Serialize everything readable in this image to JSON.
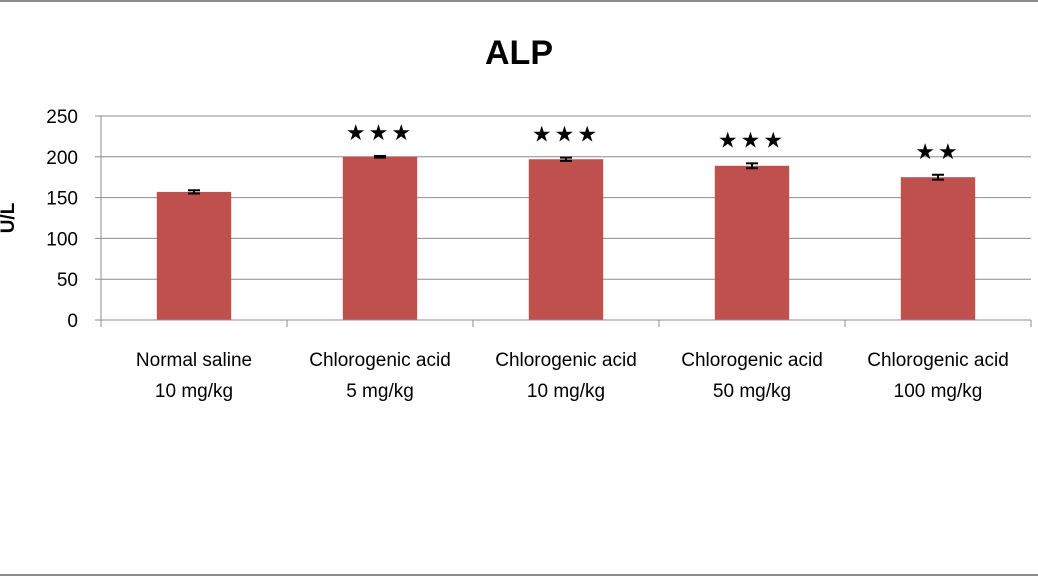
{
  "chart_data": {
    "type": "bar",
    "title": "ALP",
    "ylabel": "U/L",
    "xlabel": "",
    "ylim": [
      0,
      250
    ],
    "yticks": [
      0,
      50,
      100,
      150,
      200,
      250
    ],
    "grid": true,
    "legend": "none",
    "bar_color": "#c0504d",
    "categories": [
      [
        "Normal saline",
        "10 mg/kg"
      ],
      [
        "Chlorogenic acid",
        "5 mg/kg"
      ],
      [
        "Chlorogenic acid",
        "10 mg/kg"
      ],
      [
        "Chlorogenic acid",
        "50 mg/kg"
      ],
      [
        "Chlorogenic acid",
        "100 mg/kg"
      ]
    ],
    "values": [
      157,
      200,
      197,
      189,
      175
    ],
    "errors": [
      2,
      1,
      2,
      3,
      3
    ],
    "significance": [
      "",
      "★★★",
      "★★★",
      "★★★",
      "★★"
    ]
  }
}
